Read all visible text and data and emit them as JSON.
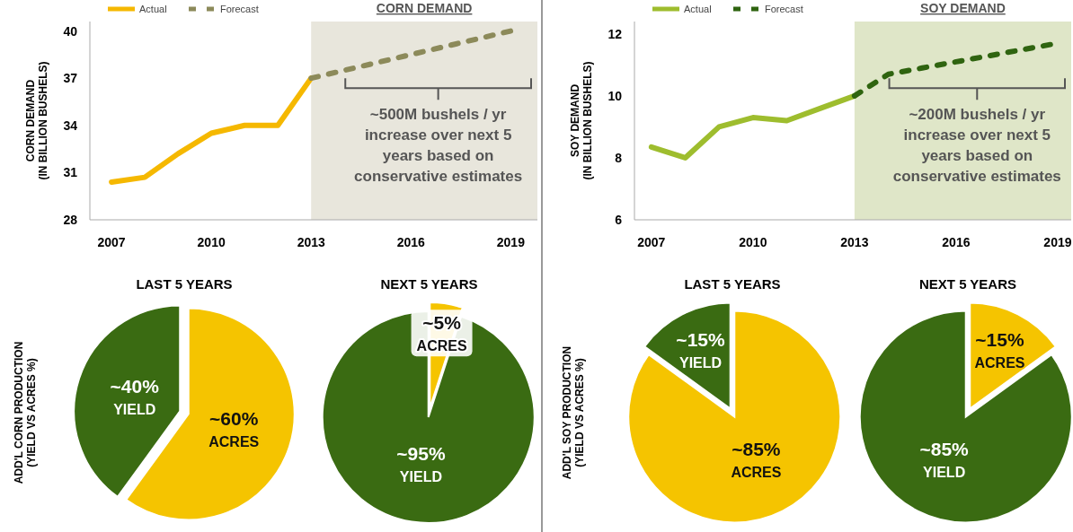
{
  "chart_data": [
    {
      "type": "line",
      "title": "CORN DEMAND",
      "ylabel": "CORN DEMAND\n(IN BILLION BUSHELS)",
      "xlim": [
        2006.35,
        2019.8
      ],
      "xticks": [
        2007,
        2010,
        2013,
        2016,
        2019
      ],
      "ylim": [
        28,
        40.6
      ],
      "yticks": [
        28,
        31,
        34,
        37,
        40
      ],
      "legend": "top left",
      "series": [
        {
          "name": "Actual",
          "color": "#f5b800",
          "line_style": "solid",
          "x": [
            2007,
            2008,
            2009,
            2010,
            2011,
            2012,
            2013
          ],
          "values": [
            30.4,
            30.7,
            32.2,
            33.5,
            34.0,
            34.0,
            37.0
          ]
        },
        {
          "name": "Forecast",
          "color": "#8c8a5a",
          "line_style": "dashed",
          "x": [
            2013,
            2014,
            2015,
            2016,
            2017,
            2018,
            2019
          ],
          "values": [
            37.0,
            37.5,
            38.0,
            38.5,
            39.0,
            39.5,
            40.0
          ]
        }
      ],
      "bands": [
        {
          "axis": "x",
          "from": 2013,
          "to": 2019.8,
          "color": "#e8e6dc"
        }
      ],
      "annotations": [
        "~500M bushels / yr increase over next 5 years based on conservative estimates"
      ]
    },
    {
      "type": "line",
      "title": "SOY DEMAND",
      "ylabel": "SOY DEMAND\n(IN BILLION BUSHELS)",
      "xlim": [
        2006.5,
        2019.4
      ],
      "xticks": [
        2007,
        2010,
        2013,
        2016,
        2019
      ],
      "ylim": [
        6,
        12.4
      ],
      "yticks": [
        6,
        8,
        10,
        12
      ],
      "legend": "top left",
      "series": [
        {
          "name": "Actual",
          "color": "#9ebd2e",
          "line_style": "solid",
          "x": [
            2007,
            2008,
            2009,
            2010,
            2011,
            2012,
            2013
          ],
          "values": [
            8.35,
            8.0,
            9.0,
            9.3,
            9.2,
            9.6,
            10.0
          ]
        },
        {
          "name": "Forecast",
          "color": "#2f6410",
          "line_style": "dashed",
          "x": [
            2013,
            2014,
            2015,
            2016,
            2017,
            2018,
            2019
          ],
          "values": [
            10.0,
            10.7,
            10.9,
            11.1,
            11.3,
            11.5,
            11.7
          ]
        }
      ],
      "bands": [
        {
          "axis": "x",
          "from": 2013,
          "to": 2019.4,
          "color": "#dfe6c8"
        }
      ],
      "annotations": [
        "~200M bushels / yr increase over next 5 years based on conservative estimates"
      ]
    },
    {
      "type": "pie",
      "title": "LAST 5 YEARS",
      "ylabel": "ADD'L CORN PRODUCTION\n(YIELD VS ACRES %)",
      "categories": [
        "ACRES",
        "YIELD"
      ],
      "values": [
        60,
        40
      ],
      "colors": [
        "#f5c400",
        "#3a6b12"
      ],
      "value_labels": [
        "~60%",
        "~40%"
      ]
    },
    {
      "type": "pie",
      "title": "NEXT 5 YEARS",
      "categories": [
        "ACRES",
        "YIELD"
      ],
      "values": [
        5,
        95
      ],
      "colors": [
        "#f5c400",
        "#3a6b12"
      ],
      "value_labels": [
        "~5%",
        "~95%"
      ]
    },
    {
      "type": "pie",
      "title": "LAST 5 YEARS",
      "ylabel": "ADD'L SOY PRODUCTION\n(YIELD VS ACRES %)",
      "categories": [
        "ACRES",
        "YIELD"
      ],
      "values": [
        85,
        15
      ],
      "colors": [
        "#f5c400",
        "#3a6b12"
      ],
      "value_labels": [
        "~85%",
        "~15%"
      ]
    },
    {
      "type": "pie",
      "title": "NEXT 5 YEARS",
      "categories": [
        "ACRES",
        "YIELD"
      ],
      "values": [
        15,
        85
      ],
      "colors": [
        "#f5c400",
        "#3a6b12"
      ],
      "value_labels": [
        "~15%",
        "~85%"
      ]
    }
  ]
}
